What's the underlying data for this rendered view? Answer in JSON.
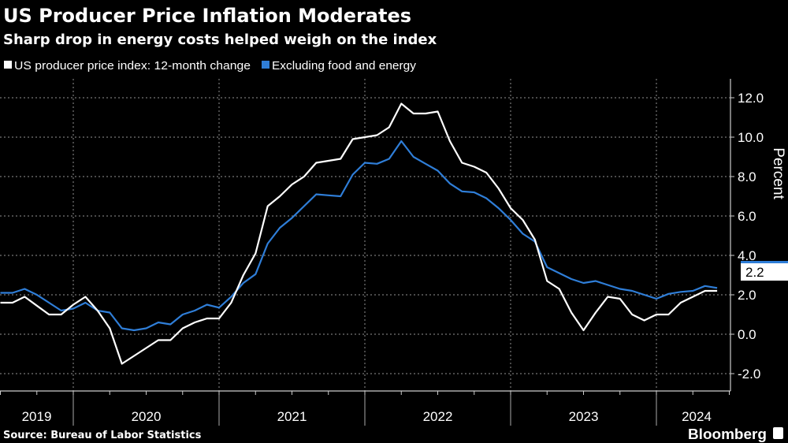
{
  "chart_data": {
    "type": "line",
    "title": "US Producer Price Inflation Moderates",
    "subtitle": "Sharp drop in energy costs helped weigh on the index",
    "ylabel": "Percent",
    "ylim": [
      -2,
      12
    ],
    "yticks": [
      "12.0",
      "10.0",
      "8.0",
      "6.0",
      "4.0",
      "2.0",
      "0.0",
      "-2.0"
    ],
    "ytick_values": [
      12,
      10,
      8,
      6,
      4,
      2,
      0,
      -2
    ],
    "xticks": [
      "2019",
      "2020",
      "2021",
      "2022",
      "2023",
      "2024"
    ],
    "x_start": "2019-07",
    "x_end": "2024-06",
    "frequency": "monthly",
    "grid": true,
    "legend_position": "top-left",
    "series": [
      {
        "name": "US producer price index: 12-month change",
        "color": "#ffffff",
        "values": [
          1.6,
          1.6,
          1.9,
          1.45,
          1.0,
          1.0,
          1.5,
          1.9,
          1.2,
          0.3,
          -1.5,
          -1.1,
          -0.7,
          -0.3,
          -0.3,
          0.3,
          0.6,
          0.8,
          0.8,
          1.6,
          3.0,
          4.1,
          6.5,
          7.0,
          7.6,
          8.0,
          8.7,
          8.8,
          8.9,
          9.9,
          10.0,
          10.1,
          10.5,
          11.7,
          11.2,
          11.2,
          11.3,
          9.8,
          8.7,
          8.5,
          8.2,
          7.4,
          6.4,
          5.8,
          4.8,
          2.7,
          2.3,
          1.1,
          0.2,
          1.1,
          1.9,
          1.8,
          1.0,
          0.7,
          1.0,
          1.0,
          1.6,
          1.9,
          2.2,
          2.2
        ]
      },
      {
        "name": "Excluding food and energy",
        "color": "#2f7ed8",
        "values": [
          2.1,
          2.1,
          2.3,
          2.0,
          1.6,
          1.2,
          1.3,
          1.6,
          1.2,
          1.1,
          0.3,
          0.2,
          0.3,
          0.6,
          0.5,
          1.0,
          1.2,
          1.5,
          1.35,
          1.9,
          2.6,
          3.05,
          4.6,
          5.4,
          5.9,
          6.5,
          7.1,
          7.05,
          7.0,
          8.1,
          8.7,
          8.65,
          8.9,
          9.8,
          9.0,
          8.65,
          8.3,
          7.65,
          7.25,
          7.2,
          6.9,
          6.4,
          5.8,
          5.1,
          4.7,
          3.4,
          3.1,
          2.8,
          2.6,
          2.7,
          2.5,
          2.3,
          2.2,
          2.0,
          1.8,
          2.05,
          2.15,
          2.2,
          2.45,
          2.35
        ]
      }
    ],
    "end_label": "2.2"
  },
  "footer": {
    "source": "Source: Bureau of Labor Statistics",
    "brand": "Bloomberg"
  }
}
